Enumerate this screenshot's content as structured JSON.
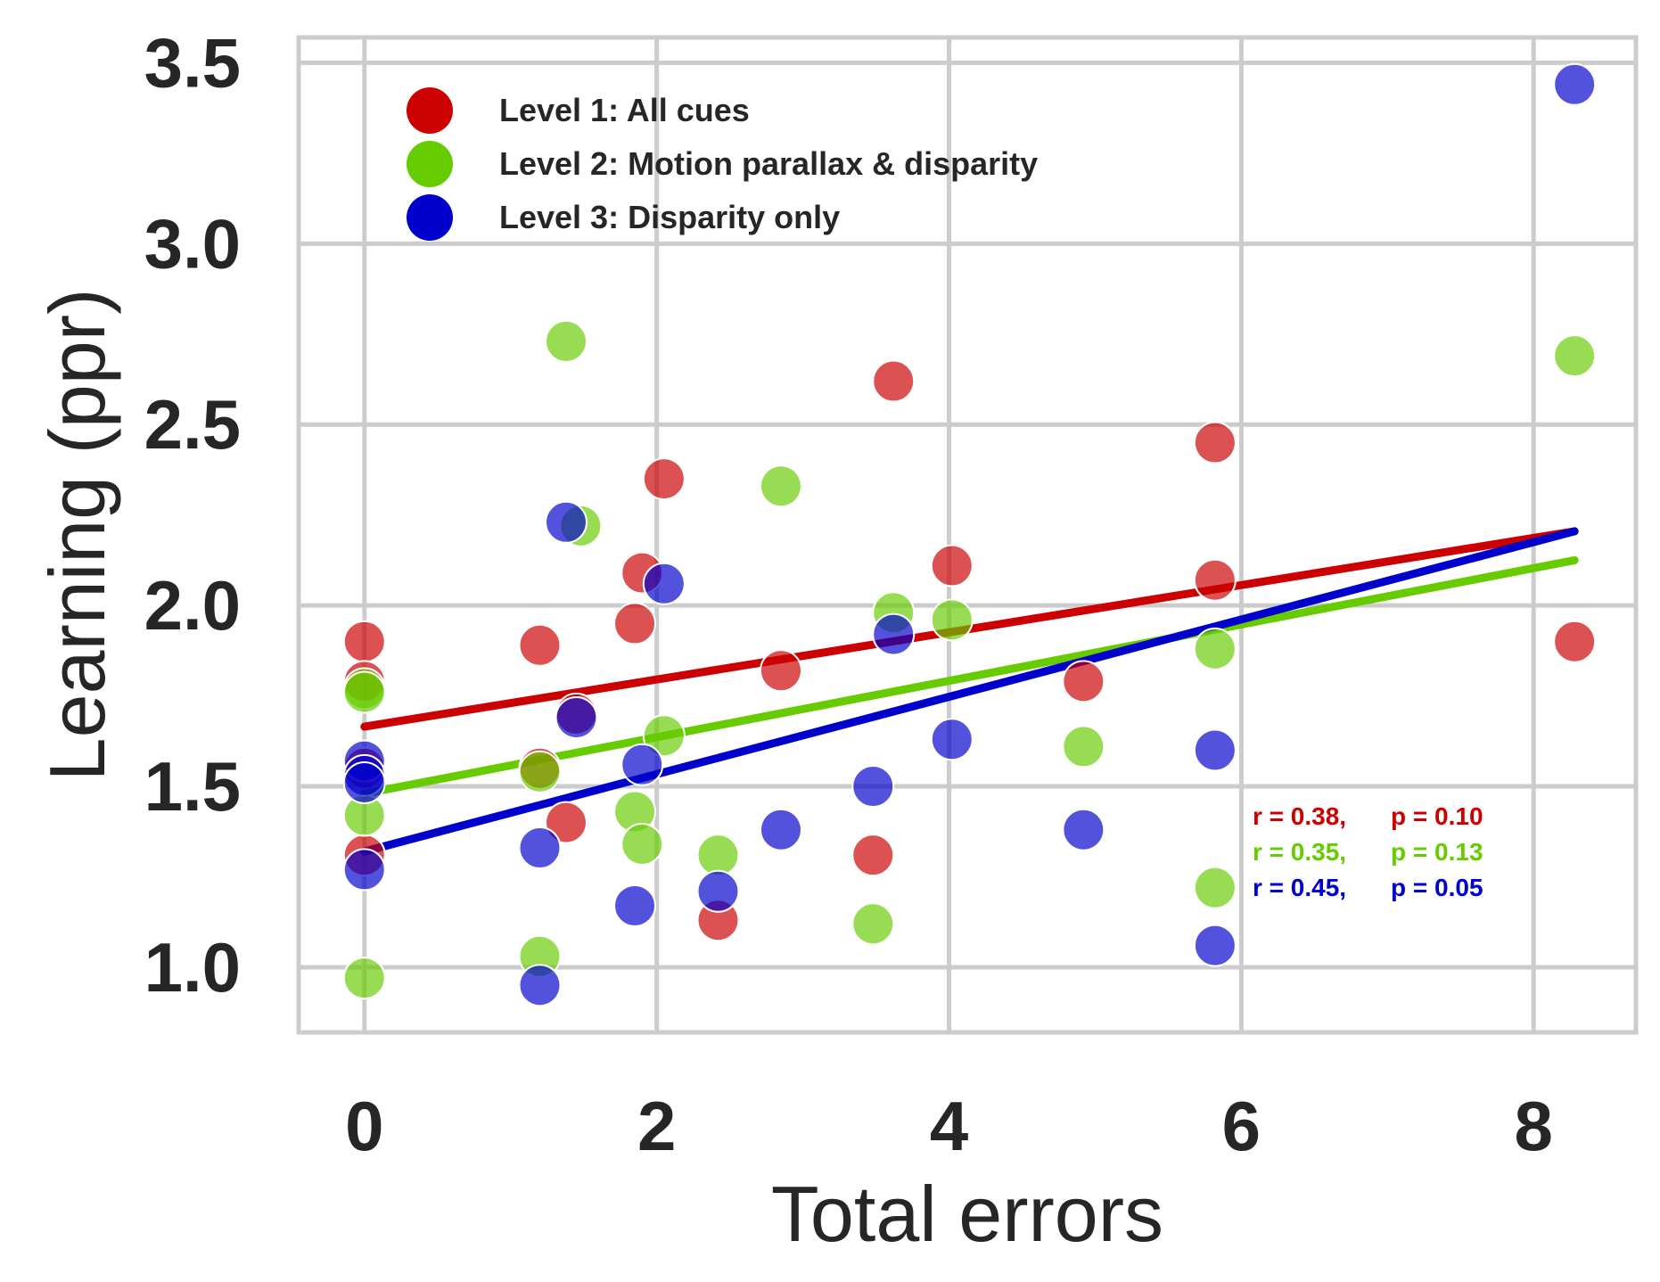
{
  "chart_data": {
    "type": "scatter",
    "title": "",
    "xlabel": "Total errors",
    "ylabel": "Learning (ppr)",
    "xlim": [
      -0.45,
      8.7
    ],
    "ylim": [
      0.82,
      3.57
    ],
    "xticks": [
      0,
      2,
      4,
      6,
      8
    ],
    "yticks": [
      1.0,
      1.5,
      2.0,
      2.5,
      3.0,
      3.5
    ],
    "xtick_labels": [
      "0",
      "2",
      "4",
      "6",
      "8"
    ],
    "ytick_labels": [
      "1.0",
      "1.5",
      "2.0",
      "2.5",
      "3.0",
      "3.5"
    ],
    "grid": true,
    "legend_position": "top-left",
    "series": [
      {
        "name": "Level 1: All cues",
        "color": "#cc0000",
        "points": [
          [
            0,
            1.9
          ],
          [
            0,
            1.79
          ],
          [
            0,
            1.55
          ],
          [
            0,
            1.31
          ],
          [
            1.2,
            1.89
          ],
          [
            1.2,
            1.55
          ],
          [
            1.38,
            1.4
          ],
          [
            1.45,
            1.7
          ],
          [
            1.85,
            1.95
          ],
          [
            1.9,
            2.09
          ],
          [
            2.05,
            2.35
          ],
          [
            2.42,
            1.13
          ],
          [
            2.85,
            1.82
          ],
          [
            3.48,
            1.31
          ],
          [
            3.62,
            2.62
          ],
          [
            4.02,
            2.11
          ],
          [
            4.92,
            1.79
          ],
          [
            5.82,
            2.45
          ],
          [
            5.82,
            2.07
          ],
          [
            8.28,
            1.9
          ]
        ],
        "fit": [
          [
            0,
            1.665
          ],
          [
            8.28,
            2.205
          ]
        ],
        "r": "r = 0.38,",
        "p": "p = 0.10"
      },
      {
        "name": "Level 2: Motion parallax & disparity",
        "color": "#66cc00",
        "points": [
          [
            0,
            1.77
          ],
          [
            0,
            1.76
          ],
          [
            0,
            1.42
          ],
          [
            0,
            0.97
          ],
          [
            1.2,
            1.54
          ],
          [
            1.2,
            1.03
          ],
          [
            1.38,
            2.73
          ],
          [
            1.48,
            2.22
          ],
          [
            1.85,
            1.43
          ],
          [
            1.9,
            1.34
          ],
          [
            2.05,
            1.64
          ],
          [
            2.42,
            1.31
          ],
          [
            2.85,
            2.33
          ],
          [
            3.48,
            1.12
          ],
          [
            3.62,
            1.98
          ],
          [
            4.02,
            1.96
          ],
          [
            4.92,
            1.61
          ],
          [
            5.82,
            1.88
          ],
          [
            5.82,
            1.22
          ],
          [
            8.28,
            2.69
          ]
        ],
        "fit": [
          [
            0,
            1.48
          ],
          [
            8.28,
            2.125
          ]
        ],
        "r": "r = 0.35,",
        "p": "p = 0.13"
      },
      {
        "name": "Level 3: Disparity only",
        "color": "#0000cc",
        "points": [
          [
            0,
            1.57
          ],
          [
            0,
            1.53
          ],
          [
            0,
            1.51
          ],
          [
            0,
            1.27
          ],
          [
            1.2,
            1.33
          ],
          [
            1.2,
            0.95
          ],
          [
            1.38,
            2.23
          ],
          [
            1.45,
            1.69
          ],
          [
            1.85,
            1.17
          ],
          [
            1.9,
            1.56
          ],
          [
            2.05,
            2.06
          ],
          [
            2.42,
            1.21
          ],
          [
            2.85,
            1.38
          ],
          [
            3.48,
            1.5
          ],
          [
            3.62,
            1.92
          ],
          [
            4.02,
            1.63
          ],
          [
            4.92,
            1.38
          ],
          [
            5.82,
            1.6
          ],
          [
            5.82,
            1.06
          ],
          [
            8.28,
            3.44
          ]
        ],
        "fit": [
          [
            0,
            1.32
          ],
          [
            8.28,
            2.205
          ]
        ],
        "r": "r = 0.45,",
        "p": "p = 0.05"
      }
    ]
  }
}
